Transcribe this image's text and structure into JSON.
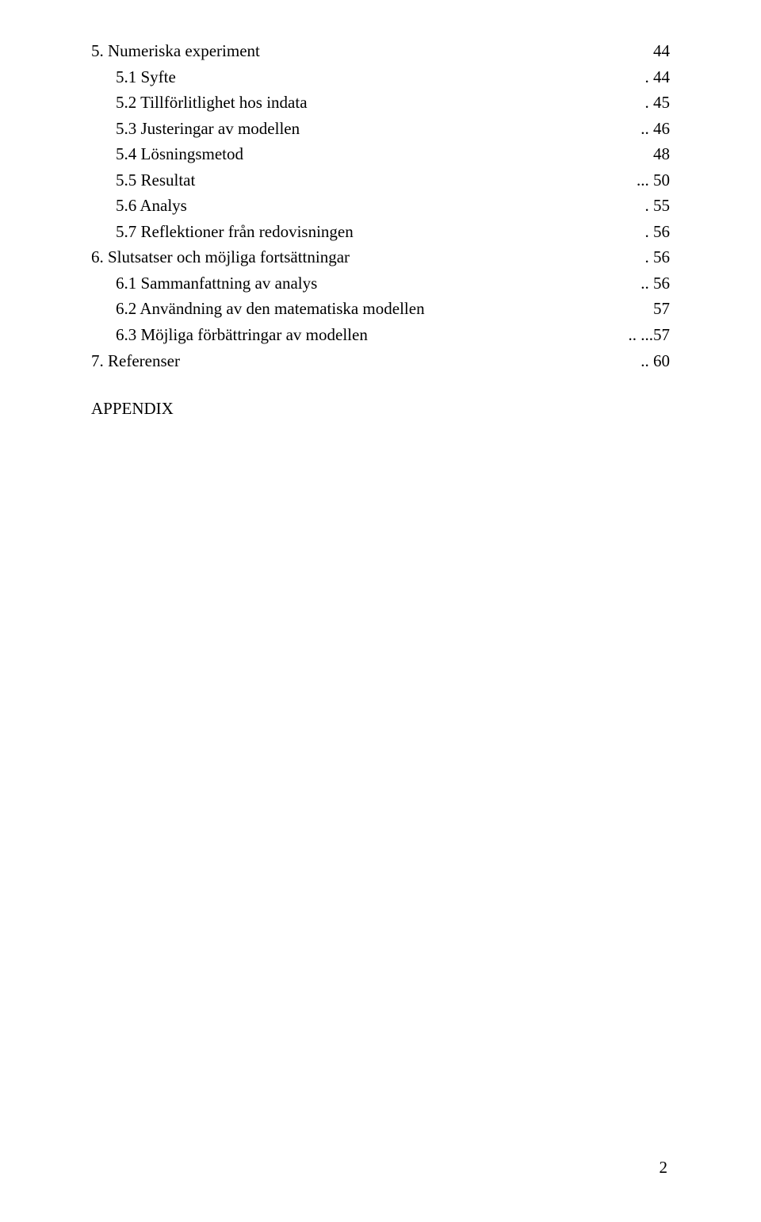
{
  "toc": [
    {
      "indent": 0,
      "label": "5. Numeriska experiment",
      "sep": "",
      "page": "44"
    },
    {
      "indent": 1,
      "label": "5.1 Syfte",
      "sep": ".",
      "page": "44"
    },
    {
      "indent": 1,
      "label": "5.2 Tillförlitlighet hos indata",
      "sep": ".",
      "page": "45"
    },
    {
      "indent": 1,
      "label": "5.3 Justeringar av modellen",
      "sep": "..",
      "page": "46"
    },
    {
      "indent": 1,
      "label": "5.4 Lösningsmetod",
      "sep": "",
      "page": "48"
    },
    {
      "indent": 1,
      "label": "5.5 Resultat",
      "sep": "...",
      "page": "50"
    },
    {
      "indent": 1,
      "label": "5.6 Analys",
      "sep": ".",
      "page": "55"
    },
    {
      "indent": 1,
      "label": "5.7 Reflektioner från redovisningen",
      "sep": ".",
      "page": "56"
    },
    {
      "indent": 0,
      "label": "6. Slutsatser och möjliga fortsättningar",
      "sep": ".",
      "page": "56"
    },
    {
      "indent": 1,
      "label": "6.1 Sammanfattning av analys",
      "sep": "..",
      "page": "56"
    },
    {
      "indent": 1,
      "label": "6.2 Användning av den matematiska modellen",
      "sep": "",
      "page": "57"
    },
    {
      "indent": 1,
      "label": "6.3 Möjliga förbättringar av modellen",
      "sep": "..",
      "page": "...57"
    },
    {
      "indent": 0,
      "label": "7. Referenser",
      "sep": "..",
      "page": "60"
    }
  ],
  "appendix_label": "APPENDIX",
  "page_number": "2"
}
